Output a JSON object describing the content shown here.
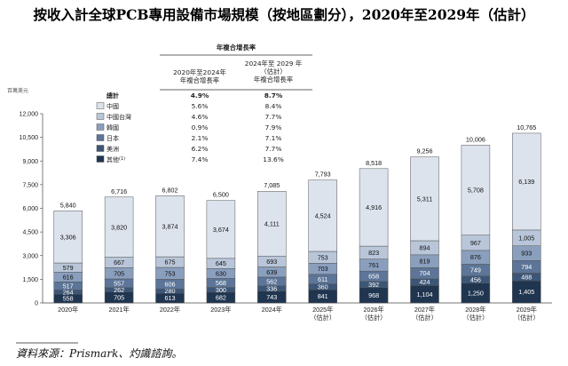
{
  "chart_data": {
    "type": "bar",
    "stacked": true,
    "title": "按收入計全球PCB專用設備市場規模（按地區劃分），2020年至2029年（估計）",
    "unit_label": "百萬美元",
    "ylim": [
      0,
      12000
    ],
    "yticks": [
      0,
      1500,
      3000,
      4500,
      6000,
      7500,
      9000,
      10500,
      12000
    ],
    "ytick_labels": [
      "0",
      "1,500",
      "3,000",
      "4,500",
      "6,000",
      "7,500",
      "9,000",
      "10,500",
      "12,000"
    ],
    "categories": [
      {
        "line1": "2020年",
        "line2": ""
      },
      {
        "line1": "2021年",
        "line2": ""
      },
      {
        "line1": "2022年",
        "line2": ""
      },
      {
        "line1": "2023年",
        "line2": ""
      },
      {
        "line1": "2024年",
        "line2": ""
      },
      {
        "line1": "2025年",
        "line2": "（估計）"
      },
      {
        "line1": "2026年",
        "line2": "（估計）"
      },
      {
        "line1": "2027年",
        "line2": "（估計）"
      },
      {
        "line1": "2028年",
        "line2": "（估計）"
      },
      {
        "line1": "2029年",
        "line2": "（估計）"
      }
    ],
    "series": [
      {
        "name": "其他",
        "sup": "(1)",
        "color": "#1f3550",
        "label_color": "#ffffff",
        "values": [
          558,
          705,
          613,
          682,
          743,
          841,
          968,
          1104,
          1250,
          1405
        ],
        "labels": [
          "558",
          "705",
          "613",
          "682",
          "743",
          "841",
          "968",
          "1,104",
          "1,250",
          "1,405"
        ]
      },
      {
        "name": "美洲",
        "sup": "",
        "color": "#3c5677",
        "label_color": "#ffffff",
        "values": [
          264,
          262,
          280,
          300,
          336,
          360,
          392,
          424,
          456,
          488
        ],
        "labels": [
          "264",
          "262",
          "280",
          "300",
          "336",
          "360",
          "392",
          "424",
          "456",
          "488"
        ]
      },
      {
        "name": "日本",
        "sup": "",
        "color": "#5c7598",
        "label_color": "#ffffff",
        "values": [
          517,
          557,
          606,
          568,
          562,
          611,
          658,
          704,
          749,
          794
        ],
        "labels": [
          "517",
          "557",
          "606",
          "568",
          "562",
          "611",
          "658",
          "704",
          "749",
          "794"
        ]
      },
      {
        "name": "韓國",
        "sup": "",
        "color": "#8a9fbd",
        "label_color": "#111111",
        "values": [
          616,
          705,
          753,
          630,
          639,
          703,
          761,
          819,
          876,
          933
        ],
        "labels": [
          "616",
          "705",
          "753",
          "630",
          "639",
          "703",
          "761",
          "819",
          "876",
          "933"
        ]
      },
      {
        "name": "中國台灣",
        "sup": "",
        "color": "#b9c6d9",
        "label_color": "#111111",
        "values": [
          579,
          667,
          675,
          645,
          693,
          753,
          823,
          894,
          967,
          1005
        ],
        "labels": [
          "579",
          "667",
          "675",
          "645",
          "693",
          "753",
          "823",
          "894",
          "967",
          "1,005"
        ]
      },
      {
        "name": "中國",
        "sup": "",
        "color": "#dde3ed",
        "label_color": "#111111",
        "values": [
          3306,
          3820,
          3874,
          3674,
          4111,
          4524,
          4916,
          5311,
          5708,
          6139
        ],
        "labels": [
          "3,306",
          "3,820",
          "3,874",
          "3,674",
          "4,111",
          "4,524",
          "4,916",
          "5,311",
          "5,708",
          "6,139"
        ]
      }
    ],
    "totals": [
      5840,
      6716,
      6802,
      6500,
      7085,
      7793,
      8518,
      9256,
      10006,
      10765
    ],
    "total_labels": [
      "5,840",
      "6,716",
      "6,802",
      "6,500",
      "7,085",
      "7,793",
      "8,518",
      "9,256",
      "10,006",
      "10,765"
    ],
    "legend": {
      "header": "年複合增長率",
      "col1_header": [
        "2020年至2024年",
        "年複合增長率"
      ],
      "col2_header": [
        "2024年至 2029 年",
        "（估計）",
        "年複合增長率"
      ],
      "rows": [
        {
          "name": "總計",
          "sup": "",
          "cagr1": "4.9%",
          "cagr2": "8.7%",
          "bold": true,
          "color": ""
        },
        {
          "name": "中國",
          "sup": "",
          "cagr1": "5.6%",
          "cagr2": "8.4%",
          "bold": false,
          "color": "#dde3ed"
        },
        {
          "name": "中國台灣",
          "sup": "",
          "cagr1": "4.6%",
          "cagr2": "7.7%",
          "bold": false,
          "color": "#b9c6d9"
        },
        {
          "name": "韓國",
          "sup": "",
          "cagr1": "0.9%",
          "cagr2": "7.9%",
          "bold": false,
          "color": "#8a9fbd"
        },
        {
          "name": "日本",
          "sup": "",
          "cagr1": "2.1%",
          "cagr2": "7.1%",
          "bold": false,
          "color": "#5c7598"
        },
        {
          "name": "美洲",
          "sup": "",
          "cagr1": "6.2%",
          "cagr2": "7.7%",
          "bold": false,
          "color": "#3c5677"
        },
        {
          "name": "其他",
          "sup": "(1)",
          "cagr1": "7.4%",
          "cagr2": "13.6%",
          "bold": false,
          "color": "#1f3550"
        }
      ]
    },
    "source": "資料來源：Prismark、灼識諮詢。"
  }
}
